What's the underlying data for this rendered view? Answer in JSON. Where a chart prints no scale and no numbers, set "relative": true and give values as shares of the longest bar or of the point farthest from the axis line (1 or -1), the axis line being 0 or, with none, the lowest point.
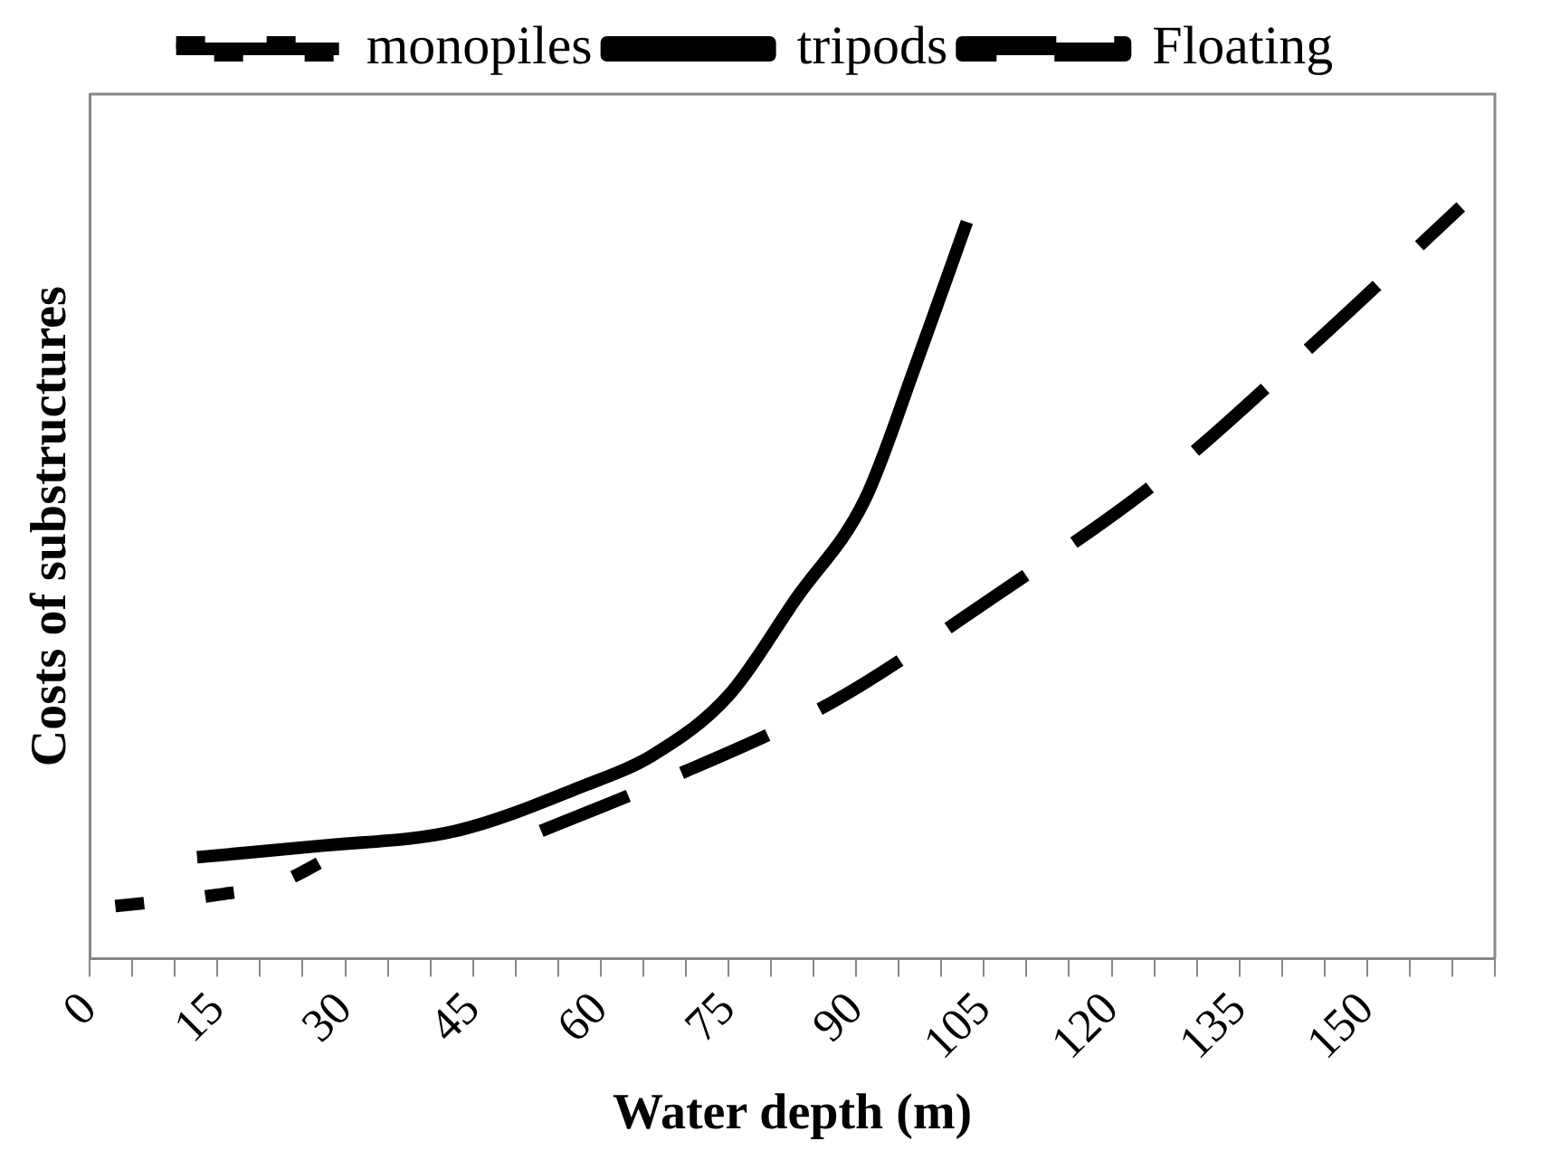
{
  "chart_data": {
    "type": "line",
    "relative": true,
    "xlabel": "Water depth (m)",
    "ylabel": "Costs of substructures",
    "legend": "top",
    "grid": false,
    "marker": "none",
    "xlim": [
      0,
      165
    ],
    "xticks": [
      0,
      {
        "value": 5,
        "label": null
      },
      {
        "value": 10,
        "label": null
      },
      15,
      {
        "value": 20,
        "label": null
      },
      {
        "value": 25,
        "label": null
      },
      30,
      {
        "value": 35,
        "label": null
      },
      {
        "value": 40,
        "label": null
      },
      45,
      {
        "value": 50,
        "label": null
      },
      {
        "value": 55,
        "label": null
      },
      60,
      {
        "value": 65,
        "label": null
      },
      {
        "value": 70,
        "label": null
      },
      75,
      {
        "value": 80,
        "label": null
      },
      {
        "value": 85,
        "label": null
      },
      90,
      {
        "value": 95,
        "label": null
      },
      {
        "value": 100,
        "label": null
      },
      105,
      {
        "value": 110,
        "label": null
      },
      {
        "value": 115,
        "label": null
      },
      120,
      {
        "value": 125,
        "label": null
      },
      {
        "value": 130,
        "label": null
      },
      135,
      {
        "value": 140,
        "label": null
      },
      {
        "value": 145,
        "label": null
      },
      150,
      {
        "value": 155,
        "label": null
      },
      {
        "value": 160,
        "label": null
      },
      {
        "value": 165,
        "label": null
      }
    ],
    "series": [
      {
        "name": "monopiles",
        "color": "#000000",
        "line_style": "dashed",
        "x": [
          3,
          15,
          22,
          29
        ],
        "values": [
          0.07,
          0.085,
          0.1,
          0.14
        ]
      },
      {
        "name": "tripods",
        "color": "#000000",
        "line_style": "solid",
        "x": [
          12.6,
          27,
          43,
          58,
          66,
          75,
          83,
          91,
          97,
          103
        ],
        "values": [
          0.135,
          0.15,
          0.17,
          0.23,
          0.27,
          0.35,
          0.48,
          0.61,
          0.79,
          0.98
        ]
      },
      {
        "name": "Floating",
        "color": "#000000",
        "line_style": "dashed",
        "x": [
          53,
          66,
          87,
          106,
          126,
          143,
          161
        ],
        "values": [
          0.17,
          0.23,
          0.34,
          0.48,
          0.64,
          0.81,
          1
        ]
      }
    ]
  }
}
